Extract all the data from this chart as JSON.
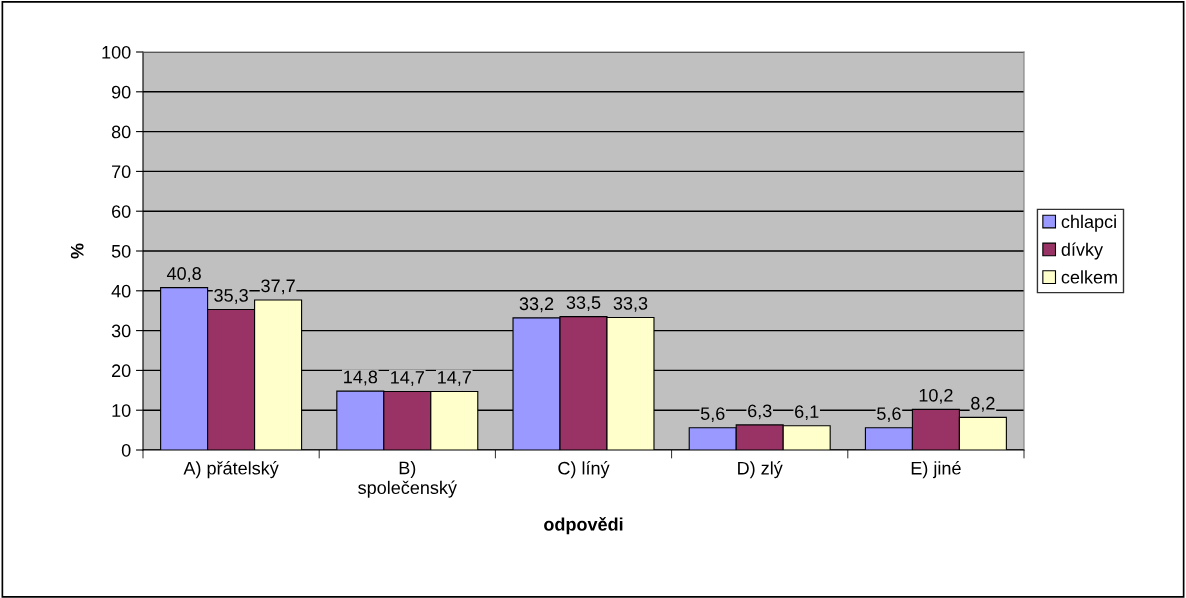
{
  "chart_data": {
    "type": "bar",
    "xlabel": "odpovědi",
    "ylabel": "%",
    "categories": [
      "A) přátelský",
      "B) společenský",
      "C) líný",
      "D) zlý",
      "E) jiné"
    ],
    "series": [
      {
        "name": "chlapci",
        "color": "#9999ff",
        "values": [
          40.8,
          14.8,
          33.2,
          5.6,
          5.6
        ],
        "value_labels": [
          "40,8",
          "14,8",
          "33,2",
          "5,6",
          "5,6"
        ]
      },
      {
        "name": "dívky",
        "color": "#993366",
        "values": [
          35.3,
          14.7,
          33.5,
          6.3,
          10.2
        ],
        "value_labels": [
          "35,3",
          "14,7",
          "33,5",
          "6,3",
          "10,2"
        ]
      },
      {
        "name": "celkem",
        "color": "#ffffcc",
        "values": [
          37.7,
          14.7,
          33.3,
          6.1,
          8.2
        ],
        "value_labels": [
          "37,7",
          "14,7",
          "33,3",
          "6,1",
          "8,2"
        ]
      }
    ],
    "ylim": [
      0,
      100
    ],
    "yticks": [
      0,
      10,
      20,
      30,
      40,
      50,
      60,
      70,
      80,
      90,
      100
    ],
    "grid": "y",
    "legend": "right"
  }
}
